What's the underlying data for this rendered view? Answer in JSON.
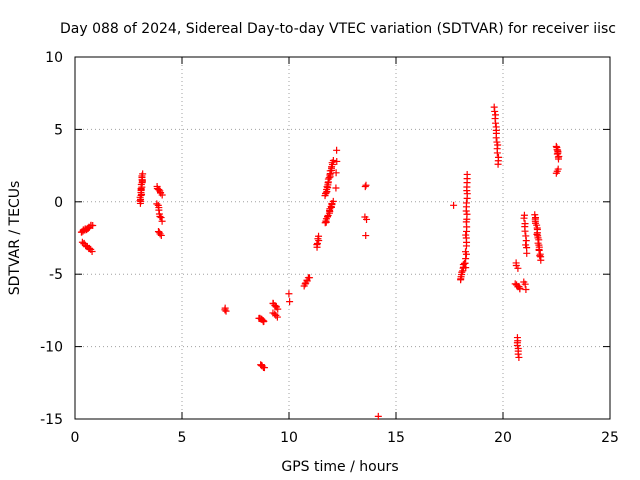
{
  "chart_data": {
    "type": "scatter",
    "title": "Day 088 of 2024, Sidereal Day-to-day VTEC variation (SDTVAR) for receiver iisc",
    "xlabel": "GPS time / hours",
    "ylabel": "SDTVAR / TECUs",
    "xlim": [
      0,
      25
    ],
    "ylim": [
      -15,
      10
    ],
    "xticks": [
      0,
      5,
      10,
      15,
      20,
      25
    ],
    "yticks": [
      -15,
      -10,
      -5,
      0,
      5,
      10
    ],
    "xtick_labels": [
      "0",
      "5",
      "10",
      "15",
      "20",
      "25"
    ],
    "ytick_labels": [
      "-15",
      "-10",
      "-5",
      "0",
      "5",
      "10"
    ],
    "grid": true,
    "marker": "+",
    "color": "#ff0000",
    "clusters": [
      {
        "x0": 0.3,
        "y0": -2.1,
        "x1": 0.8,
        "y1": -1.6,
        "n": 14
      },
      {
        "x0": 0.35,
        "y0": -2.8,
        "x1": 0.8,
        "y1": -3.4,
        "n": 10
      },
      {
        "x0": 3.05,
        "y0": -0.1,
        "x1": 3.15,
        "y1": 1.9,
        "n": 20
      },
      {
        "x0": 3.85,
        "y0": 1.0,
        "x1": 4.05,
        "y1": 0.5,
        "n": 8
      },
      {
        "x0": 3.85,
        "y0": -0.1,
        "x1": 4.05,
        "y1": -1.3,
        "n": 8
      },
      {
        "x0": 3.9,
        "y0": -2.0,
        "x1": 4.05,
        "y1": -2.3,
        "n": 4
      },
      {
        "x0": 7.0,
        "y0": -7.3,
        "x1": 7.05,
        "y1": -7.5,
        "n": 3
      },
      {
        "x0": 8.6,
        "y0": -8.0,
        "x1": 8.85,
        "y1": -8.3,
        "n": 8
      },
      {
        "x0": 8.7,
        "y0": -11.2,
        "x1": 8.85,
        "y1": -11.5,
        "n": 5
      },
      {
        "x0": 9.25,
        "y0": -7.0,
        "x1": 9.45,
        "y1": -7.4,
        "n": 6
      },
      {
        "x0": 9.25,
        "y0": -7.7,
        "x1": 9.45,
        "y1": -8.0,
        "n": 4
      },
      {
        "x0": 10.0,
        "y0": -6.3,
        "x1": 10.0,
        "y1": -6.9,
        "n": 2
      },
      {
        "x0": 10.7,
        "y0": -5.8,
        "x1": 10.95,
        "y1": -5.2,
        "n": 7
      },
      {
        "x0": 11.3,
        "y0": -3.1,
        "x1": 11.4,
        "y1": -2.4,
        "n": 6
      },
      {
        "x0": 11.7,
        "y0": 0.4,
        "x1": 12.05,
        "y1": 2.8,
        "n": 22
      },
      {
        "x0": 11.7,
        "y0": -1.5,
        "x1": 12.05,
        "y1": 0.0,
        "n": 16
      },
      {
        "x0": 12.2,
        "y0": 2.0,
        "x1": 12.25,
        "y1": 3.6,
        "n": 3
      },
      {
        "x0": 12.2,
        "y0": 0.9,
        "x1": 12.2,
        "y1": 0.9,
        "n": 1
      },
      {
        "x0": 13.55,
        "y0": 1.0,
        "x1": 13.6,
        "y1": 1.1,
        "n": 2
      },
      {
        "x0": 13.55,
        "y0": -1.0,
        "x1": 13.6,
        "y1": -1.2,
        "n": 2
      },
      {
        "x0": 13.6,
        "y0": -2.3,
        "x1": 13.6,
        "y1": -2.3,
        "n": 1
      },
      {
        "x0": 14.2,
        "y0": -14.8,
        "x1": 14.2,
        "y1": -14.8,
        "n": 1
      },
      {
        "x0": 17.7,
        "y0": -0.3,
        "x1": 17.7,
        "y1": -0.3,
        "n": 1
      },
      {
        "x0": 18.0,
        "y0": -5.4,
        "x1": 18.2,
        "y1": -4.2,
        "n": 10
      },
      {
        "x0": 18.25,
        "y0": -4.5,
        "x1": 18.35,
        "y1": 1.9,
        "n": 24
      },
      {
        "x0": 19.6,
        "y0": 6.5,
        "x1": 19.8,
        "y1": 2.6,
        "n": 16
      },
      {
        "x0": 20.6,
        "y0": -4.2,
        "x1": 20.7,
        "y1": -4.6,
        "n": 3
      },
      {
        "x0": 20.6,
        "y0": -5.7,
        "x1": 20.8,
        "y1": -6.0,
        "n": 6
      },
      {
        "x0": 20.65,
        "y0": -9.4,
        "x1": 20.75,
        "y1": -10.7,
        "n": 8
      },
      {
        "x0": 21.0,
        "y0": -0.9,
        "x1": 21.1,
        "y1": -3.5,
        "n": 10
      },
      {
        "x0": 21.0,
        "y0": -5.5,
        "x1": 21.1,
        "y1": -6.0,
        "n": 3
      },
      {
        "x0": 21.5,
        "y0": -0.9,
        "x1": 21.75,
        "y1": -4.0,
        "n": 22
      },
      {
        "x0": 22.5,
        "y0": 3.8,
        "x1": 22.6,
        "y1": 3.0,
        "n": 10
      },
      {
        "x0": 22.5,
        "y0": 2.0,
        "x1": 22.6,
        "y1": 2.3,
        "n": 3
      }
    ]
  }
}
